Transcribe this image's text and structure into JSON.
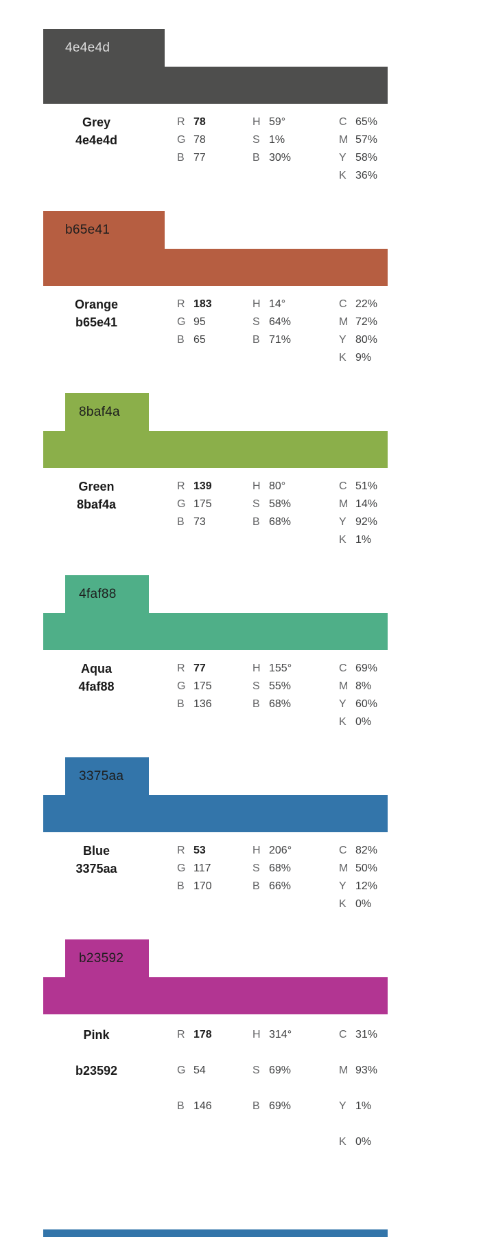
{
  "labels": {
    "r": "R",
    "g": "G",
    "b": "B",
    "h": "H",
    "s": "S",
    "c": "C",
    "m": "M",
    "y": "Y",
    "k": "K"
  },
  "swatches": [
    {
      "name": "Grey",
      "hex": "4e4e4d",
      "color": "#4e4e4d",
      "tab_text_color": "#dedede",
      "rgb": {
        "r": "78",
        "g": "78",
        "b": "77"
      },
      "hsb": {
        "h": "59°",
        "s": "1%",
        "b": "30%"
      },
      "cmyk": {
        "c": "65%",
        "m": "57%",
        "y": "58%",
        "k": "36%"
      }
    },
    {
      "name": "Orange",
      "hex": "b65e41",
      "color": "#b65e41",
      "tab_text_color": "#1e1e1e",
      "rgb": {
        "r": "183",
        "g": "95",
        "b": "65"
      },
      "hsb": {
        "h": "14°",
        "s": "64%",
        "b": "71%"
      },
      "cmyk": {
        "c": "22%",
        "m": "72%",
        "y": "80%",
        "k": "9%"
      }
    },
    {
      "name": "Green",
      "hex": "8baf4a",
      "color": "#8baf4a",
      "tab_text_color": "#1e1e1e",
      "rgb": {
        "r": "139",
        "g": "175",
        "b": "73"
      },
      "hsb": {
        "h": "80°",
        "s": "58%",
        "b": "68%"
      },
      "cmyk": {
        "c": "51%",
        "m": "14%",
        "y": "92%",
        "k": "1%"
      }
    },
    {
      "name": "Aqua",
      "hex": "4faf88",
      "color": "#4faf88",
      "tab_text_color": "#1e1e1e",
      "rgb": {
        "r": "77",
        "g": "175",
        "b": "136"
      },
      "hsb": {
        "h": "155°",
        "s": "55%",
        "b": "68%"
      },
      "cmyk": {
        "c": "69%",
        "m": "8%",
        "y": "60%",
        "k": "0%"
      }
    },
    {
      "name": "Blue",
      "hex": "3375aa",
      "color": "#3375aa",
      "tab_text_color": "#1e1e1e",
      "rgb": {
        "r": "53",
        "g": "117",
        "b": "170"
      },
      "hsb": {
        "h": "206°",
        "s": "68%",
        "b": "66%"
      },
      "cmyk": {
        "c": "82%",
        "m": "50%",
        "y": "12%",
        "k": "0%"
      }
    },
    {
      "name": "Pink",
      "hex": "b23592",
      "color": "#b23592",
      "tab_text_color": "#1e1e1e",
      "rgb": {
        "r": "178",
        "g": "54",
        "b": "146"
      },
      "hsb": {
        "h": "314°",
        "s": "69%",
        "b": "69%"
      },
      "cmyk": {
        "c": "31%",
        "m": "93%",
        "y": "1%",
        "k": "0%"
      }
    }
  ],
  "partial_next_swatch": {
    "color": "#3375aa"
  }
}
